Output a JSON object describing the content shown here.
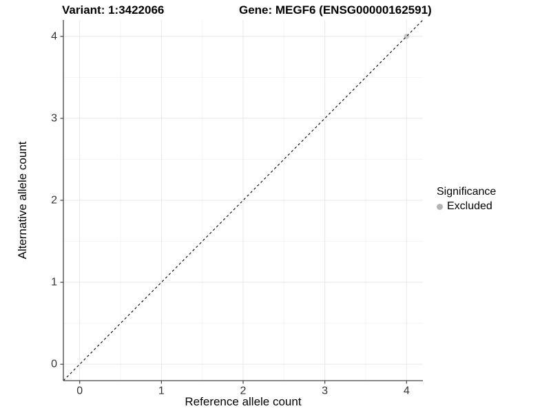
{
  "chart_data": {
    "type": "scatter",
    "titles": {
      "variant": "Variant: 1:3422066",
      "gene": "Gene: MEGF6 (ENSG00000162591)"
    },
    "xlabel": "Reference allele count",
    "ylabel": "Alternative allele count",
    "xlim": [
      -0.2,
      4.2
    ],
    "ylim": [
      -0.2,
      4.2
    ],
    "xticks": [
      0,
      1,
      2,
      3,
      4
    ],
    "yticks": [
      0,
      1,
      2,
      3,
      4
    ],
    "xticks_minor": [
      0.5,
      1.5,
      2.5,
      3.5
    ],
    "yticks_minor": [
      0.5,
      1.5,
      2.5,
      3.5
    ],
    "grid": true,
    "identity_line": {
      "style": "dashed",
      "from": [
        -0.2,
        -0.2
      ],
      "to": [
        4.2,
        4.2
      ],
      "color": "#000000"
    },
    "series": [
      {
        "name": "Excluded",
        "color": "#bdbdbd",
        "opacity": 0.8,
        "point_radius": 3.8,
        "points": [
          [
            4,
            4
          ]
        ]
      }
    ],
    "legend": {
      "title": "Significance",
      "position": "right",
      "items": [
        {
          "label": "Excluded",
          "color": "#b3b3b3"
        }
      ]
    },
    "colors": {
      "grid_major": "#e7e7e7",
      "grid_minor": "#f4f4f4",
      "axis_line": "#404040",
      "tick_mark": "#404040",
      "tick_label": "#333333"
    },
    "tick_label_font_size": 16
  }
}
